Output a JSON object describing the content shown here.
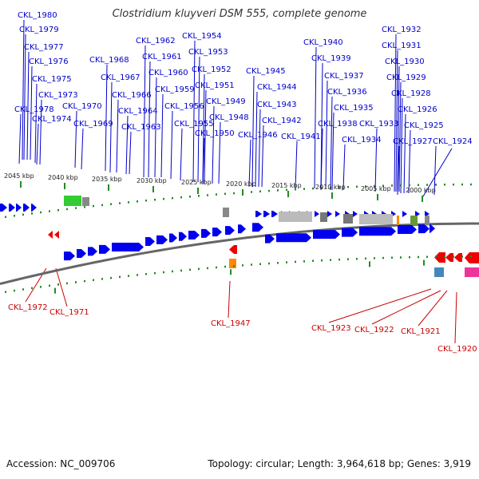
{
  "title": "Clostridium kluyveri DSM 555, complete genome",
  "footer": {
    "accession": "Accession: NC_009706",
    "topology": "Topology: circular; Length: 3,964,618 bp; Genes: 3,919"
  },
  "colors": {
    "top_label": "#0000cc",
    "bottom_label": "#cc0000",
    "forward_gene": "#0000ee",
    "reverse_gene": "#ee0000",
    "tick": "#228b22",
    "backbone": "#666666"
  },
  "scale_ticks": [
    "2045 kbp",
    "2040 kbp",
    "2035 kbp",
    "2030 kbp",
    "2025 kbp",
    "2020 kbp",
    "2015 kbp",
    "2010 kbp",
    "2005 kbp",
    "2000 kbp"
  ],
  "top_labels": [
    "CKL_1980",
    "CKL_1979",
    "CKL_1977",
    "CKL_1976",
    "CKL_1975",
    "CKL_1973",
    "CKL_1978",
    "CKL_1974",
    "CKL_1970",
    "CKL_1969",
    "CKL_1968",
    "CKL_1967",
    "CKL_1966",
    "CKL_1964",
    "CKL_1963",
    "CKL_1962",
    "CKL_1961",
    "CKL_1960",
    "CKL_1959",
    "CKL_1956",
    "CKL_1955",
    "CKL_1954",
    "CKL_1953",
    "CKL_1952",
    "CKL_1951",
    "CKL_1949",
    "CKL_1950",
    "CKL_1948",
    "CKL_1945",
    "CKL_1944",
    "CKL_1943",
    "CKL_1942",
    "CKL_1946",
    "CKL_1941",
    "CKL_1940",
    "CKL_1939",
    "CKL_1937",
    "CKL_1936",
    "CKL_1935",
    "CKL_1938",
    "CKL_1934",
    "CKL_1933",
    "CKL_1932",
    "CKL_1931",
    "CKL_1930",
    "CKL_1929",
    "CKL_1928",
    "CKL_1926",
    "CKL_1925",
    "CKL_1927",
    "CKL_1924"
  ],
  "bottom_labels": [
    "CKL_1972",
    "CKL_1971",
    "CKL_1947",
    "CKL_1923",
    "CKL_1922",
    "CKL_1921",
    "CKL_1920"
  ]
}
